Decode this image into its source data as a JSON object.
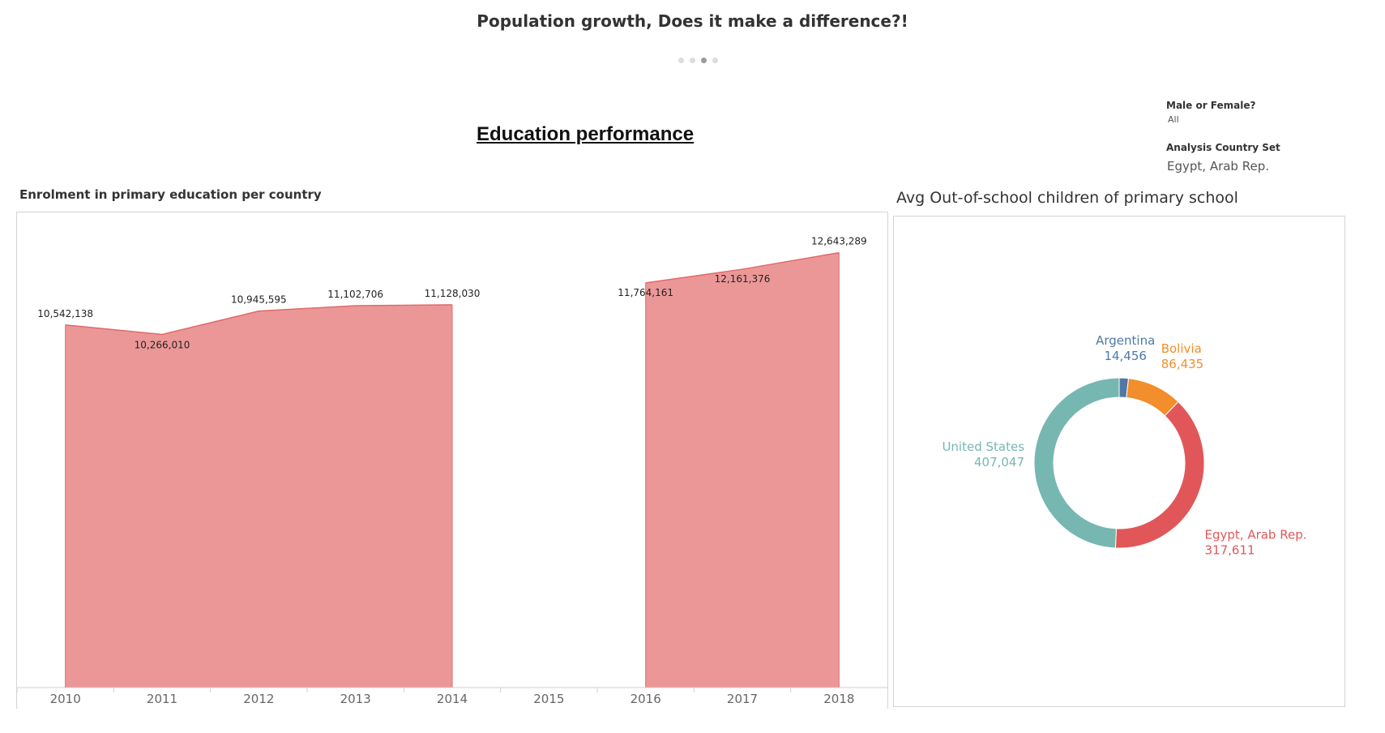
{
  "story": {
    "title": "Population growth, Does it make a difference?!",
    "points": [
      {
        "label": "",
        "active": false
      },
      {
        "label": "",
        "active": false
      },
      {
        "label": "",
        "active": true
      },
      {
        "label": "",
        "active": false
      }
    ]
  },
  "dashboard": {
    "section_title": "Education performance"
  },
  "filters": {
    "gender": {
      "label": "Male or Female?",
      "value": "All"
    },
    "country_set": {
      "label": "Analysis Country Set",
      "value": "Egypt, Arab Rep."
    }
  },
  "chart_data": [
    {
      "type": "area",
      "title": "Enrolment in primary education per country",
      "x": [
        "2010",
        "2011",
        "2012",
        "2013",
        "2014",
        "2015",
        "2016",
        "2017",
        "2018"
      ],
      "values": [
        10542138,
        10266010,
        10945595,
        11102706,
        11128030,
        null,
        11764161,
        12161376,
        12643289
      ],
      "data_labels": [
        "10,542,138",
        "10,266,010",
        "10,945,595",
        "11,102,706",
        "11,128,030",
        "",
        "11,764,161",
        "12,161,376",
        "12,643,289"
      ],
      "ylim": [
        0,
        13200000
      ],
      "grid": false,
      "color": "#ec9797",
      "line_color": "#e06a6a"
    },
    {
      "type": "pie",
      "title": "Avg Out-of-school children of primary school",
      "categories": [
        "Argentina",
        "Bolivia",
        "Egypt, Arab Rep.",
        "United States"
      ],
      "values": [
        14456,
        86435,
        317611,
        407047
      ],
      "value_labels": [
        "14,456",
        "86,435",
        "317,611",
        "407,047"
      ],
      "colors": [
        "#4e79a7",
        "#f28e2b",
        "#e15759",
        "#76b7b2"
      ],
      "donut": true
    }
  ]
}
